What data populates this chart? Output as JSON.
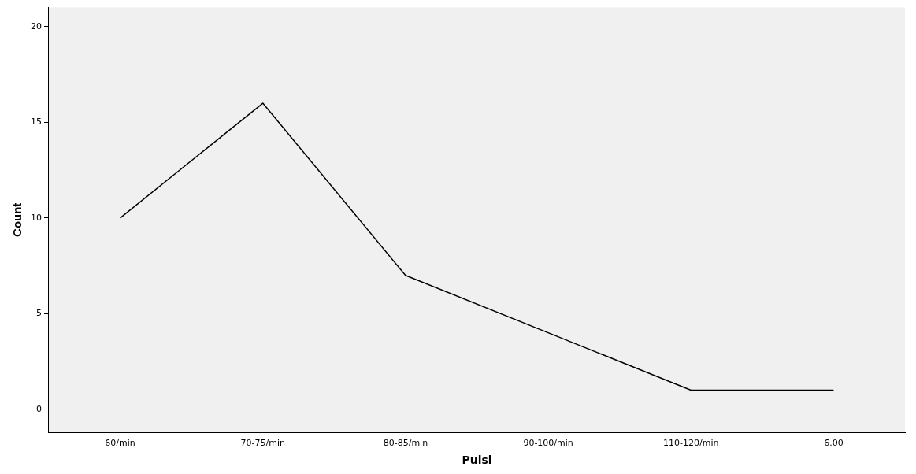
{
  "chart_data": {
    "type": "line",
    "xlabel": "Pulsi",
    "ylabel": "Count",
    "categories": [
      "60/min",
      "70-75/min",
      "80-85/min",
      "90-100/min",
      "110-120/min",
      "6.00"
    ],
    "series": [
      {
        "color": "#000000",
        "values": [
          10,
          16,
          7,
          4,
          1,
          1
        ]
      }
    ],
    "ylim": [
      -1.2,
      21
    ],
    "yticks": [
      0,
      5,
      10,
      15,
      20
    ],
    "grid": false,
    "legend": false,
    "marker": "none",
    "line_style": "solid"
  }
}
